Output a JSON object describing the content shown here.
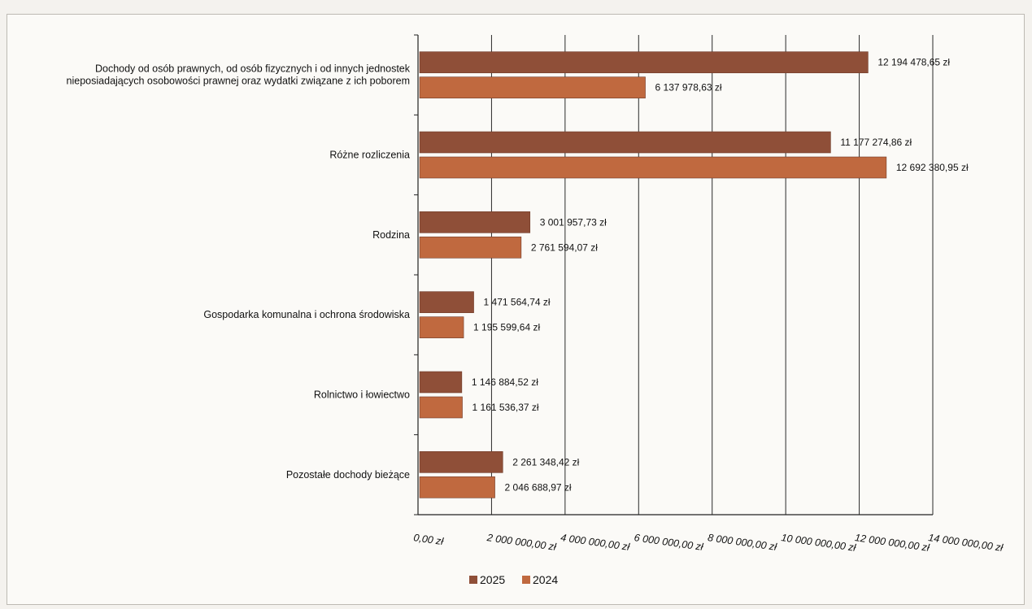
{
  "chart_data": {
    "type": "bar",
    "orientation": "horizontal",
    "categories": [
      "Dochody od osób prawnych, od osób fizycznych i od innych jednostek\nnieposiadających osobowości prawnej oraz wydatki związane z ich poborem",
      "Różne rozliczenia",
      "Rodzina",
      "Gospodarka komunalna i ochrona środowiska",
      "Rolnictwo i łowiectwo",
      "Pozostałe dochody bieżące"
    ],
    "series": [
      {
        "name": "2025",
        "color": "#8f4f38",
        "values": [
          12194478.65,
          11177274.86,
          3001957.73,
          1471564.74,
          1146884.52,
          2261348.42
        ],
        "labels": [
          "12 194 478,65 zł",
          "11 177 274,86 zł",
          "3 001 957,73 zł",
          "1 471 564,74 zł",
          "1 146 884,52 zł",
          "2 261 348,42 zł"
        ]
      },
      {
        "name": "2024",
        "color": "#c0693f",
        "values": [
          6137978.63,
          12692380.95,
          2761594.07,
          1195599.64,
          1161536.37,
          2046688.97
        ],
        "labels": [
          "6 137 978,63 zł",
          "12 692 380,95 zł",
          "2 761 594,07 zł",
          "1 195 599,64 zł",
          "1 161 536,37 zł",
          "2 046 688,97 zł"
        ]
      }
    ],
    "xlim": [
      0,
      14000000
    ],
    "ticks": [
      0,
      2000000,
      4000000,
      6000000,
      8000000,
      10000000,
      12000000,
      14000000
    ],
    "tick_labels": [
      "0,00 zł",
      "2 000 000,00 zł",
      "4 000 000,00 zł",
      "6 000 000,00 zł",
      "8 000 000,00 zł",
      "10 000 000,00 zł",
      "12 000 000,00 zł",
      "14 000 000,00 zł"
    ],
    "grid": true,
    "legend_position": "bottom-center"
  }
}
